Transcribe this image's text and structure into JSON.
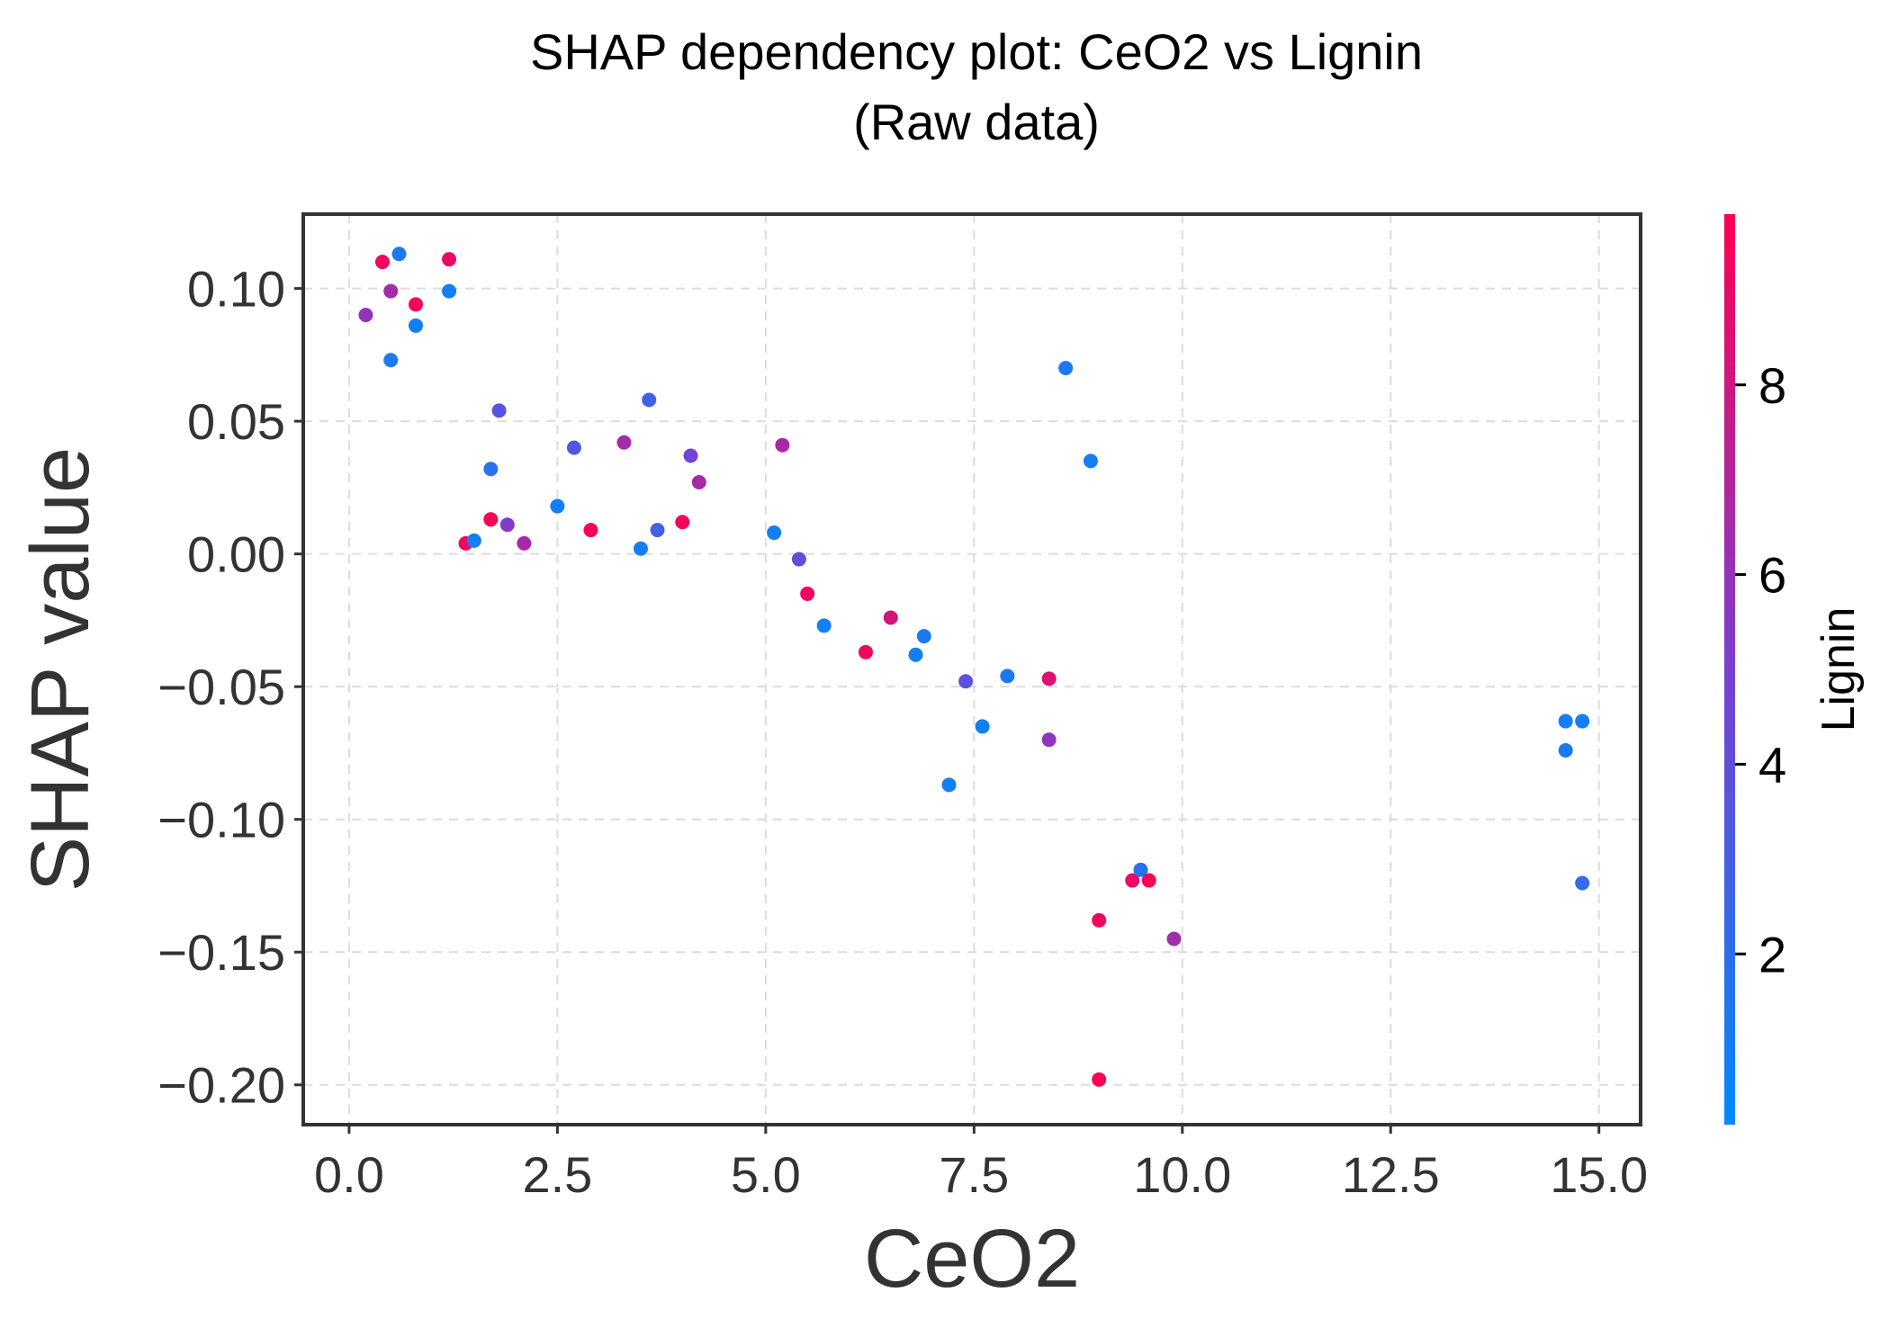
{
  "chart_data": {
    "type": "scatter",
    "title": "SHAP dependency plot: CeO2 vs Lignin",
    "subtitle": "(Raw data)",
    "xlabel": "CeO2",
    "ylabel": "SHAP value",
    "xlim": [
      -0.55,
      15.5
    ],
    "ylim": [
      -0.215,
      0.128
    ],
    "xticks": [
      0.0,
      2.5,
      5.0,
      7.5,
      10.0,
      12.5,
      15.0
    ],
    "xtick_labels": [
      "0.0",
      "2.5",
      "5.0",
      "7.5",
      "10.0",
      "12.5",
      "15.0"
    ],
    "yticks": [
      0.1,
      0.05,
      0.0,
      -0.05,
      -0.1,
      -0.15,
      -0.2
    ],
    "ytick_labels": [
      "0.10",
      "0.05",
      "0.00",
      "−0.05",
      "−0.10",
      "−0.15",
      "−0.20"
    ],
    "grid": true,
    "colorbar": {
      "label": "Lignin",
      "range": [
        0.2,
        9.8
      ],
      "ticks": [
        2,
        4,
        6,
        8
      ],
      "tick_labels": [
        "2",
        "4",
        "6",
        "8"
      ],
      "color_low": "#008afb",
      "color_mid": "#7a3fd0",
      "color_high": "#ff0052"
    },
    "points": [
      {
        "x": 0.2,
        "y": 0.09,
        "c": 5.8
      },
      {
        "x": 0.4,
        "y": 0.11,
        "c": 9.4
      },
      {
        "x": 0.5,
        "y": 0.099,
        "c": 6.5
      },
      {
        "x": 0.5,
        "y": 0.073,
        "c": 1.2
      },
      {
        "x": 0.6,
        "y": 0.113,
        "c": 1.3
      },
      {
        "x": 0.8,
        "y": 0.094,
        "c": 9.5
      },
      {
        "x": 0.8,
        "y": 0.086,
        "c": 0.9
      },
      {
        "x": 1.2,
        "y": 0.111,
        "c": 9.0
      },
      {
        "x": 1.2,
        "y": 0.099,
        "c": 1.0
      },
      {
        "x": 1.4,
        "y": 0.004,
        "c": 9.3
      },
      {
        "x": 1.5,
        "y": 0.005,
        "c": 1.0
      },
      {
        "x": 1.7,
        "y": 0.032,
        "c": 1.8
      },
      {
        "x": 1.7,
        "y": 0.013,
        "c": 9.6
      },
      {
        "x": 1.8,
        "y": 0.054,
        "c": 3.6
      },
      {
        "x": 1.9,
        "y": 0.011,
        "c": 5.3
      },
      {
        "x": 2.1,
        "y": 0.004,
        "c": 6.6
      },
      {
        "x": 2.5,
        "y": 0.018,
        "c": 1.0
      },
      {
        "x": 2.7,
        "y": 0.04,
        "c": 3.4
      },
      {
        "x": 2.9,
        "y": 0.009,
        "c": 9.5
      },
      {
        "x": 3.3,
        "y": 0.042,
        "c": 6.4
      },
      {
        "x": 3.5,
        "y": 0.002,
        "c": 1.0
      },
      {
        "x": 3.6,
        "y": 0.058,
        "c": 2.8
      },
      {
        "x": 3.7,
        "y": 0.009,
        "c": 2.8
      },
      {
        "x": 4.0,
        "y": 0.012,
        "c": 9.4
      },
      {
        "x": 4.1,
        "y": 0.037,
        "c": 4.6
      },
      {
        "x": 4.2,
        "y": 0.027,
        "c": 6.6
      },
      {
        "x": 5.1,
        "y": 0.008,
        "c": 1.0
      },
      {
        "x": 5.2,
        "y": 0.041,
        "c": 6.6
      },
      {
        "x": 5.4,
        "y": -0.002,
        "c": 4.2
      },
      {
        "x": 5.5,
        "y": -0.015,
        "c": 9.2
      },
      {
        "x": 5.7,
        "y": -0.027,
        "c": 0.9
      },
      {
        "x": 6.2,
        "y": -0.037,
        "c": 9.4
      },
      {
        "x": 6.5,
        "y": -0.024,
        "c": 8.3
      },
      {
        "x": 6.8,
        "y": -0.038,
        "c": 1.0
      },
      {
        "x": 6.9,
        "y": -0.031,
        "c": 1.2
      },
      {
        "x": 7.2,
        "y": -0.087,
        "c": 1.0
      },
      {
        "x": 7.4,
        "y": -0.048,
        "c": 3.8
      },
      {
        "x": 7.6,
        "y": -0.065,
        "c": 1.0
      },
      {
        "x": 7.9,
        "y": -0.046,
        "c": 1.2
      },
      {
        "x": 8.4,
        "y": -0.047,
        "c": 8.6
      },
      {
        "x": 8.4,
        "y": -0.07,
        "c": 5.8
      },
      {
        "x": 8.6,
        "y": 0.07,
        "c": 1.3
      },
      {
        "x": 8.9,
        "y": 0.035,
        "c": 1.0
      },
      {
        "x": 9.0,
        "y": -0.138,
        "c": 9.4
      },
      {
        "x": 9.0,
        "y": -0.198,
        "c": 9.6
      },
      {
        "x": 9.4,
        "y": -0.123,
        "c": 9.0
      },
      {
        "x": 9.5,
        "y": -0.119,
        "c": 1.6
      },
      {
        "x": 9.6,
        "y": -0.123,
        "c": 9.6
      },
      {
        "x": 9.9,
        "y": -0.145,
        "c": 6.4
      },
      {
        "x": 14.6,
        "y": -0.063,
        "c": 1.0
      },
      {
        "x": 14.6,
        "y": -0.074,
        "c": 1.2
      },
      {
        "x": 14.8,
        "y": -0.063,
        "c": 1.0
      },
      {
        "x": 14.8,
        "y": -0.124,
        "c": 2.2
      }
    ]
  }
}
